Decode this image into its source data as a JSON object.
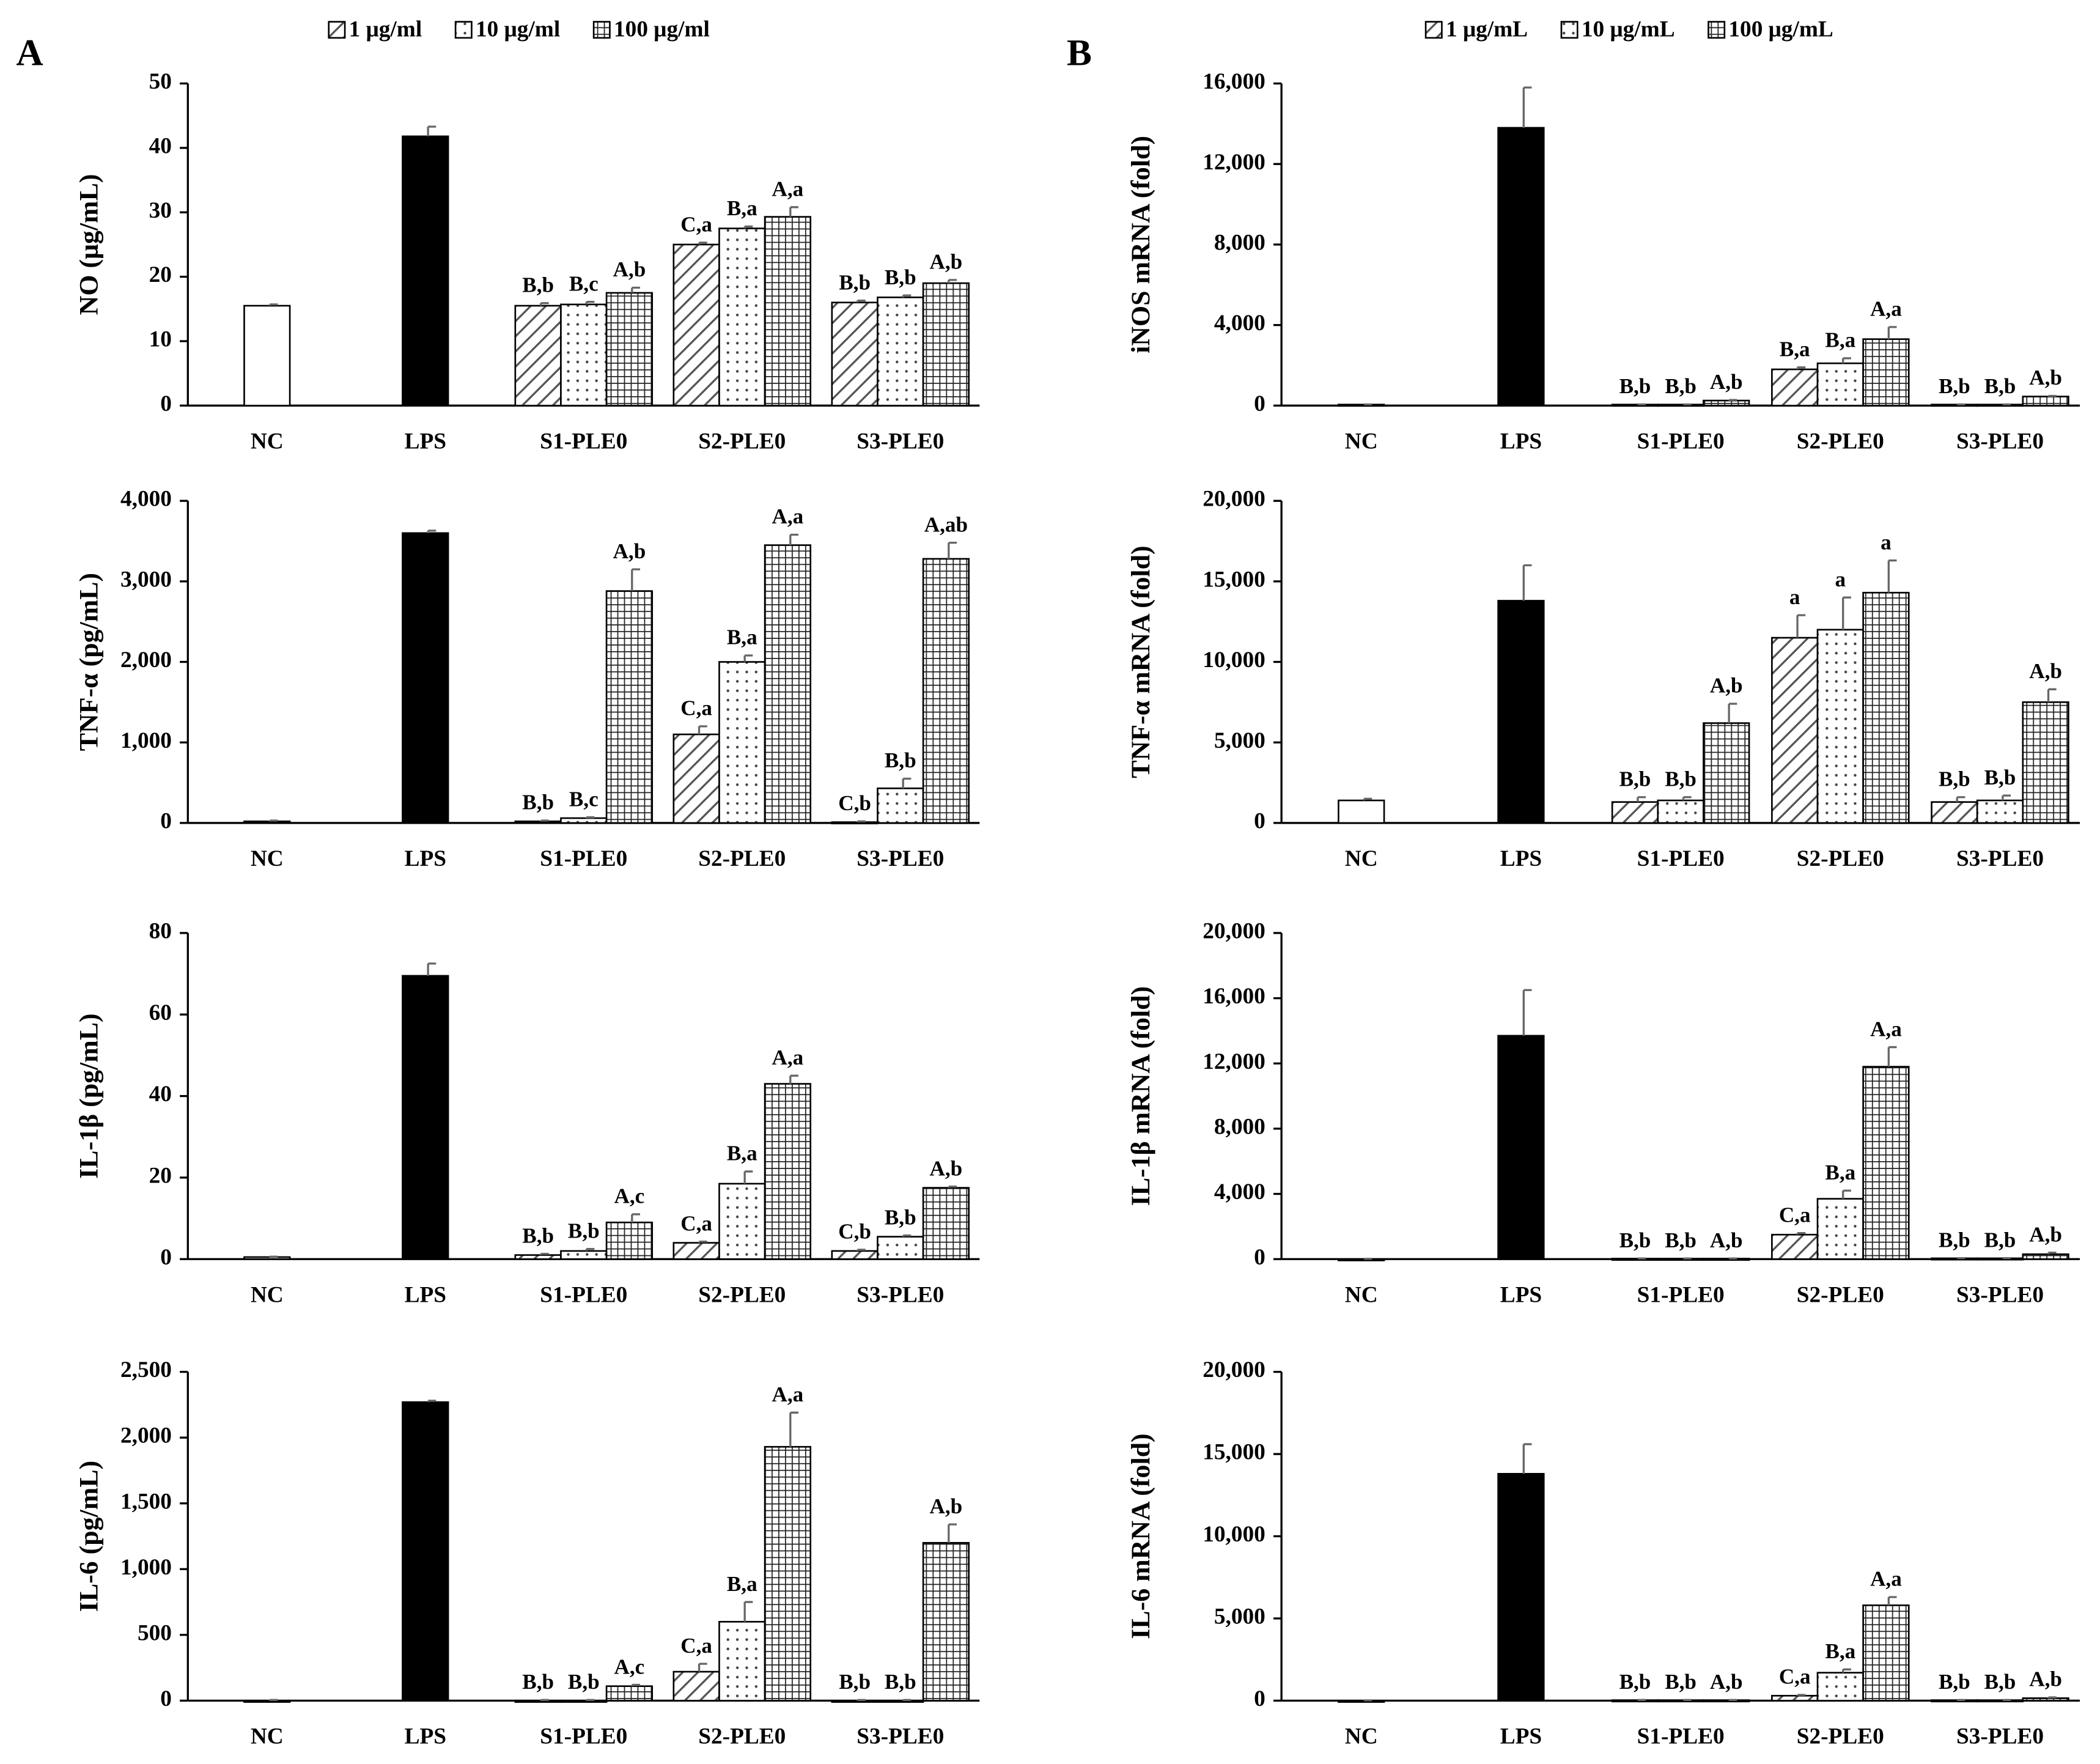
{
  "chart_data": [
    {
      "type": "bar",
      "panel": "A",
      "legend": "top",
      "ylabel": "NO (μg/mL)",
      "categories": [
        "NC",
        "LPS",
        "S1-PLE0",
        "S2-PLE0",
        "S3-PLE0"
      ],
      "values": [
        15.5,
        41.8,
        null,
        null,
        null
      ],
      "errors": [
        0.2,
        1.5,
        null,
        null,
        null
      ],
      "colors": [
        "#ffffff",
        "#000000",
        null,
        null,
        null
      ],
      "series": [
        {
          "name": "1 μg/ml",
          "pattern": "hatch",
          "values": [
            null,
            null,
            15.5,
            25,
            16
          ],
          "errors": [
            null,
            null,
            0.4,
            0.3,
            0.3
          ],
          "annotations": [
            null,
            null,
            "B,b",
            "C,a",
            "B,b"
          ]
        },
        {
          "name": "10 μg/ml",
          "pattern": "dots",
          "values": [
            null,
            null,
            15.7,
            27.5,
            16.8
          ],
          "errors": [
            null,
            null,
            0.4,
            0.3,
            0.3
          ],
          "annotations": [
            null,
            null,
            "B,c",
            "B,a",
            "B,b"
          ]
        },
        {
          "name": "100 μg/ml",
          "pattern": "grid",
          "values": [
            null,
            null,
            17.5,
            29.3,
            19
          ],
          "errors": [
            null,
            null,
            0.8,
            1.5,
            0.5
          ],
          "annotations": [
            null,
            null,
            "A,b",
            "A,a",
            "A,b"
          ]
        }
      ],
      "ylim": [
        0,
        50
      ],
      "yticks": [
        0,
        10,
        20,
        30,
        40,
        50
      ]
    },
    {
      "type": "bar",
      "ylabel": "TNF-α (pg/mL)",
      "categories": [
        "NC",
        "LPS",
        "S1-PLE0",
        "S2-PLE0",
        "S3-PLE0"
      ],
      "values": [
        20,
        3600,
        null,
        null,
        null
      ],
      "errors": [
        10,
        30,
        null,
        null,
        null
      ],
      "colors": [
        "#ffffff",
        "#000000",
        null,
        null,
        null
      ],
      "series": [
        {
          "pattern": "hatch",
          "values": [
            null,
            null,
            20,
            1100,
            10
          ],
          "errors": [
            null,
            null,
            10,
            100,
            10
          ],
          "annotations": [
            null,
            null,
            "B,b",
            "C,a",
            "C,b"
          ]
        },
        {
          "pattern": "dots",
          "values": [
            null,
            null,
            60,
            2000,
            430
          ],
          "errors": [
            null,
            null,
            10,
            80,
            120
          ],
          "annotations": [
            null,
            null,
            "B,c",
            "B,a",
            "B,b"
          ]
        },
        {
          "pattern": "grid",
          "values": [
            null,
            null,
            2880,
            3450,
            3280
          ],
          "errors": [
            null,
            null,
            270,
            130,
            200
          ],
          "annotations": [
            null,
            null,
            "A,b",
            "A,a",
            "A,ab"
          ]
        }
      ],
      "ylim": [
        0,
        4000
      ],
      "yticks": [
        0,
        {
          "value": 1000,
          "label": "1,000"
        },
        {
          "value": 2000,
          "label": "2,000"
        },
        {
          "value": 3000,
          "label": "3,000"
        },
        {
          "value": 4000,
          "label": "4,000"
        }
      ]
    },
    {
      "type": "bar",
      "ylabel": "IL-1β (pg/mL)",
      "categories": [
        "NC",
        "LPS",
        "S1-PLE0",
        "S2-PLE0",
        "S3-PLE0"
      ],
      "values": [
        0.5,
        69.5,
        null,
        null,
        null
      ],
      "errors": [
        0.1,
        3,
        null,
        null,
        null
      ],
      "colors": [
        "#ffffff",
        "#000000",
        null,
        null,
        null
      ],
      "series": [
        {
          "pattern": "hatch",
          "values": [
            null,
            null,
            1,
            4,
            2
          ],
          "errors": [
            null,
            null,
            0.3,
            0.3,
            0.3
          ],
          "annotations": [
            null,
            null,
            "B,b",
            "C,a",
            "C,b"
          ]
        },
        {
          "pattern": "dots",
          "values": [
            null,
            null,
            2,
            18.5,
            5.5
          ],
          "errors": [
            null,
            null,
            0.5,
            3,
            0.3
          ],
          "annotations": [
            null,
            null,
            "B,b",
            "B,a",
            "B,b"
          ]
        },
        {
          "pattern": "grid",
          "values": [
            null,
            null,
            9,
            43,
            17.5
          ],
          "errors": [
            null,
            null,
            2,
            2,
            0.3
          ],
          "annotations": [
            null,
            null,
            "A,c",
            "A,a",
            "A,b"
          ]
        }
      ],
      "ylim": [
        0,
        80
      ],
      "yticks": [
        0,
        20,
        40,
        60,
        80
      ]
    },
    {
      "type": "bar",
      "ylabel": "IL-6 (pg/mL)",
      "categories": [
        "NC",
        "LPS",
        "S1-PLE0",
        "S2-PLE0",
        "S3-PLE0"
      ],
      "values": [
        0,
        2270,
        null,
        null,
        null
      ],
      "errors": [
        5,
        10,
        null,
        null,
        null
      ],
      "colors": [
        "#ffffff",
        "#000000",
        null,
        null,
        null
      ],
      "series": [
        {
          "pattern": "hatch",
          "values": [
            null,
            null,
            0,
            220,
            0
          ],
          "errors": [
            null,
            null,
            5,
            60,
            5
          ],
          "annotations": [
            null,
            null,
            "B,b",
            "C,a",
            "B,b"
          ]
        },
        {
          "pattern": "dots",
          "values": [
            null,
            null,
            0,
            600,
            0
          ],
          "errors": [
            null,
            null,
            5,
            150,
            5
          ],
          "annotations": [
            null,
            null,
            "B,b",
            "B,a",
            "B,b"
          ]
        },
        {
          "pattern": "grid",
          "values": [
            null,
            null,
            110,
            1930,
            1200
          ],
          "errors": [
            null,
            null,
            10,
            260,
            140
          ],
          "annotations": [
            null,
            null,
            "A,c",
            "A,a",
            "A,b"
          ]
        }
      ],
      "ylim": [
        0,
        2500
      ],
      "yticks": [
        0,
        500,
        {
          "value": 1000,
          "label": "1,000"
        },
        {
          "value": 1500,
          "label": "1,500"
        },
        {
          "value": 2000,
          "label": "2,000"
        },
        {
          "value": 2500,
          "label": "2,500"
        }
      ]
    },
    {
      "type": "bar",
      "panel": "B",
      "legend": "top",
      "ylabel": "iNOS mRNA (fold)",
      "categories": [
        "NC",
        "LPS",
        "S1-PLE0",
        "S2-PLE0",
        "S3-PLE0"
      ],
      "values": [
        50,
        13800,
        null,
        null,
        null
      ],
      "errors": [
        10,
        2000,
        null,
        null,
        null
      ],
      "colors": [
        "#ffffff",
        "#000000",
        null,
        null,
        null
      ],
      "series": [
        {
          "name": "1 μg/mL",
          "pattern": "hatch",
          "values": [
            null,
            null,
            50,
            1800,
            50
          ],
          "errors": [
            null,
            null,
            10,
            100,
            10
          ],
          "annotations": [
            null,
            null,
            "B,b",
            "B,a",
            "B,b"
          ]
        },
        {
          "name": "10 μg/mL",
          "pattern": "dots",
          "values": [
            null,
            null,
            50,
            2100,
            50
          ],
          "errors": [
            null,
            null,
            10,
            250,
            10
          ],
          "annotations": [
            null,
            null,
            "B,b",
            "B,a",
            "B,b"
          ]
        },
        {
          "name": "100 μg/mL",
          "pattern": "grid",
          "values": [
            null,
            null,
            250,
            3300,
            450
          ],
          "errors": [
            null,
            null,
            30,
            600,
            30
          ],
          "annotations": [
            null,
            null,
            "A,b",
            "A,a",
            "A,b"
          ]
        }
      ],
      "ylim": [
        0,
        16000
      ],
      "yticks": [
        0,
        {
          "value": 4000,
          "label": "4,000"
        },
        {
          "value": 8000,
          "label": "8,000"
        },
        {
          "value": 12000,
          "label": "12,000"
        },
        {
          "value": 16000,
          "label": "16,000"
        }
      ]
    },
    {
      "type": "bar",
      "ylabel": "TNF-α mRNA (fold)",
      "categories": [
        "NC",
        "LPS",
        "S1-PLE0",
        "S2-PLE0",
        "S3-PLE0"
      ],
      "values": [
        1400,
        13800,
        null,
        null,
        null
      ],
      "errors": [
        100,
        2200,
        null,
        null,
        null
      ],
      "colors": [
        "#ffffff",
        "#000000",
        null,
        null,
        null
      ],
      "series": [
        {
          "pattern": "hatch",
          "values": [
            null,
            null,
            1300,
            11500,
            1300
          ],
          "errors": [
            null,
            null,
            300,
            1400,
            300
          ],
          "annotations": [
            null,
            null,
            "B,b",
            "a",
            "B,b"
          ]
        },
        {
          "pattern": "dots",
          "values": [
            null,
            null,
            1400,
            12000,
            1400
          ],
          "errors": [
            null,
            null,
            200,
            2000,
            300
          ],
          "annotations": [
            null,
            null,
            "B,b",
            "a",
            "B,b"
          ]
        },
        {
          "pattern": "grid",
          "values": [
            null,
            null,
            6200,
            14300,
            7500
          ],
          "errors": [
            null,
            null,
            1200,
            2000,
            800
          ],
          "annotations": [
            null,
            null,
            "A,b",
            "a",
            "A,b"
          ]
        }
      ],
      "ylim": [
        0,
        20000
      ],
      "yticks": [
        0,
        {
          "value": 5000,
          "label": "5,000"
        },
        {
          "value": 10000,
          "label": "10,000"
        },
        {
          "value": 15000,
          "label": "15,000"
        },
        {
          "value": 20000,
          "label": "20,000"
        }
      ]
    },
    {
      "type": "bar",
      "ylabel": "IL-1β mRNA (fold)",
      "categories": [
        "NC",
        "LPS",
        "S1-PLE0",
        "S2-PLE0",
        "S3-PLE0"
      ],
      "values": [
        0,
        13700,
        null,
        null,
        null
      ],
      "errors": [
        20,
        2800,
        null,
        null,
        null
      ],
      "colors": [
        "#ffffff",
        "#000000",
        null,
        null,
        null
      ],
      "series": [
        {
          "pattern": "hatch",
          "values": [
            null,
            null,
            30,
            1500,
            50
          ],
          "errors": [
            null,
            null,
            10,
            100,
            10
          ],
          "annotations": [
            null,
            null,
            "B,b",
            "C,a",
            "B,b"
          ]
        },
        {
          "pattern": "dots",
          "values": [
            null,
            null,
            30,
            3700,
            50
          ],
          "errors": [
            null,
            null,
            10,
            500,
            10
          ],
          "annotations": [
            null,
            null,
            "B,b",
            "B,a",
            "B,b"
          ]
        },
        {
          "pattern": "grid",
          "values": [
            null,
            null,
            30,
            11800,
            300
          ],
          "errors": [
            null,
            null,
            10,
            1200,
            100
          ],
          "annotations": [
            null,
            null,
            "A,b",
            "A,a",
            "A,b"
          ]
        }
      ],
      "ylim": [
        0,
        20000
      ],
      "yticks": [
        0,
        {
          "value": 4000,
          "label": "4,000"
        },
        {
          "value": 8000,
          "label": "8,000"
        },
        {
          "value": 12000,
          "label": "12,000"
        },
        {
          "value": 16000,
          "label": "16,000"
        },
        {
          "value": 20000,
          "label": "20,000"
        }
      ]
    },
    {
      "type": "bar",
      "ylabel": "IL-6 mRNA (fold)",
      "categories": [
        "NC",
        "LPS",
        "S1-PLE0",
        "S2-PLE0",
        "S3-PLE0"
      ],
      "values": [
        0,
        13800,
        null,
        null,
        null
      ],
      "errors": [
        20,
        1800,
        null,
        null,
        null
      ],
      "colors": [
        "#ffffff",
        "#000000",
        null,
        null,
        null
      ],
      "series": [
        {
          "pattern": "hatch",
          "values": [
            null,
            null,
            30,
            300,
            30
          ],
          "errors": [
            null,
            null,
            10,
            50,
            10
          ],
          "annotations": [
            null,
            null,
            "B,b",
            "C,a",
            "B,b"
          ]
        },
        {
          "pattern": "dots",
          "values": [
            null,
            null,
            30,
            1700,
            30
          ],
          "errors": [
            null,
            null,
            10,
            200,
            10
          ],
          "annotations": [
            null,
            null,
            "B,b",
            "B,a",
            "B,b"
          ]
        },
        {
          "pattern": "grid",
          "values": [
            null,
            null,
            30,
            5800,
            150
          ],
          "errors": [
            null,
            null,
            10,
            500,
            50
          ],
          "annotations": [
            null,
            null,
            "A,b",
            "A,a",
            "A,b"
          ]
        }
      ],
      "ylim": [
        0,
        20000
      ],
      "yticks": [
        0,
        {
          "value": 5000,
          "label": "5,000"
        },
        {
          "value": 10000,
          "label": "10,000"
        },
        {
          "value": 15000,
          "label": "15,000"
        },
        {
          "value": 20000,
          "label": "20,000"
        }
      ]
    }
  ]
}
